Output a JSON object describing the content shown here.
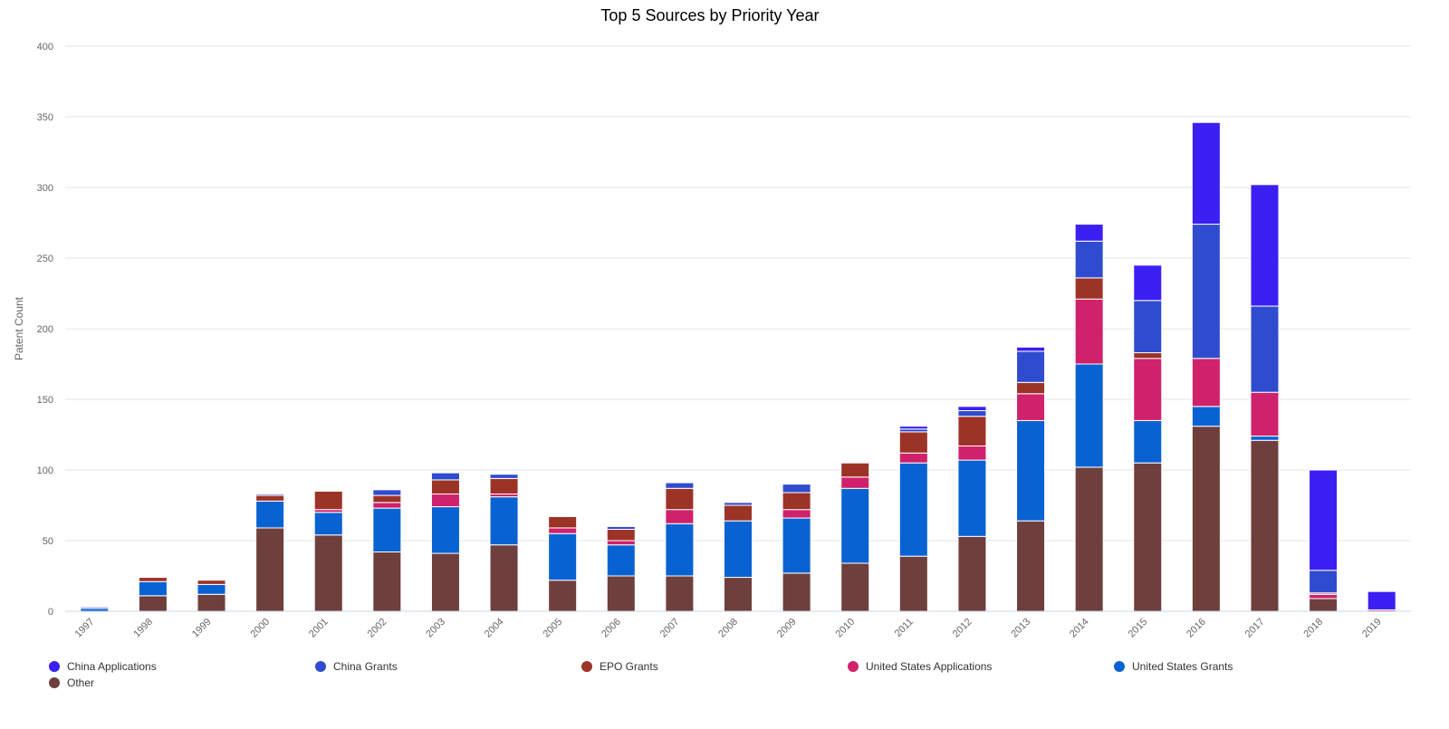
{
  "chart_data": {
    "type": "bar",
    "stacked": true,
    "title": "Top 5 Sources by Priority Year",
    "ylabel": "Patent Count",
    "xlabel": "",
    "ylim": [
      0,
      400
    ],
    "yticks": [
      0,
      50,
      100,
      150,
      200,
      250,
      300,
      350,
      400
    ],
    "categories": [
      "1997",
      "1998",
      "1999",
      "2000",
      "2001",
      "2002",
      "2003",
      "2004",
      "2005",
      "2006",
      "2007",
      "2008",
      "2009",
      "2010",
      "2011",
      "2012",
      "2013",
      "2014",
      "2015",
      "2016",
      "2017",
      "2018",
      "2019"
    ],
    "series": [
      {
        "name": "Other",
        "color": "#6e3f3d",
        "values": [
          0,
          11,
          12,
          59,
          54,
          42,
          41,
          47,
          22,
          25,
          25,
          24,
          27,
          34,
          39,
          53,
          64,
          102,
          105,
          131,
          121,
          9,
          0
        ]
      },
      {
        "name": "United States Grants",
        "color": "#0962d2",
        "values": [
          2,
          10,
          7,
          19,
          16,
          31,
          33,
          34,
          33,
          22,
          37,
          40,
          39,
          53,
          66,
          54,
          71,
          73,
          30,
          14,
          3,
          0,
          0
        ]
      },
      {
        "name": "United States Applications",
        "color": "#d0216b",
        "values": [
          0,
          0,
          0,
          0,
          2,
          4,
          9,
          2,
          4,
          3,
          10,
          0,
          6,
          8,
          7,
          10,
          19,
          46,
          44,
          34,
          31,
          3,
          1
        ]
      },
      {
        "name": "EPO Grants",
        "color": "#9c3327",
        "values": [
          0,
          3,
          3,
          4,
          13,
          5,
          10,
          11,
          8,
          8,
          15,
          11,
          12,
          10,
          15,
          21,
          8,
          15,
          4,
          0,
          0,
          1,
          0
        ]
      },
      {
        "name": "China Grants",
        "color": "#2f4ccf",
        "values": [
          1,
          0,
          0,
          1,
          0,
          4,
          5,
          3,
          0,
          2,
          4,
          2,
          6,
          0,
          2,
          4,
          22,
          26,
          37,
          95,
          61,
          16,
          0
        ]
      },
      {
        "name": "China Applications",
        "color": "#3c1ff2",
        "values": [
          0,
          0,
          0,
          0,
          0,
          0,
          0,
          0,
          0,
          0,
          0,
          0,
          0,
          0,
          2,
          3,
          3,
          12,
          25,
          72,
          86,
          71,
          13
        ]
      }
    ],
    "legend": {
      "position": "bottom-left",
      "order": [
        "China Applications",
        "China Grants",
        "EPO Grants",
        "United States Applications",
        "United States Grants",
        "Other"
      ]
    },
    "grid": true,
    "gridColor": "#e6e6e6"
  }
}
